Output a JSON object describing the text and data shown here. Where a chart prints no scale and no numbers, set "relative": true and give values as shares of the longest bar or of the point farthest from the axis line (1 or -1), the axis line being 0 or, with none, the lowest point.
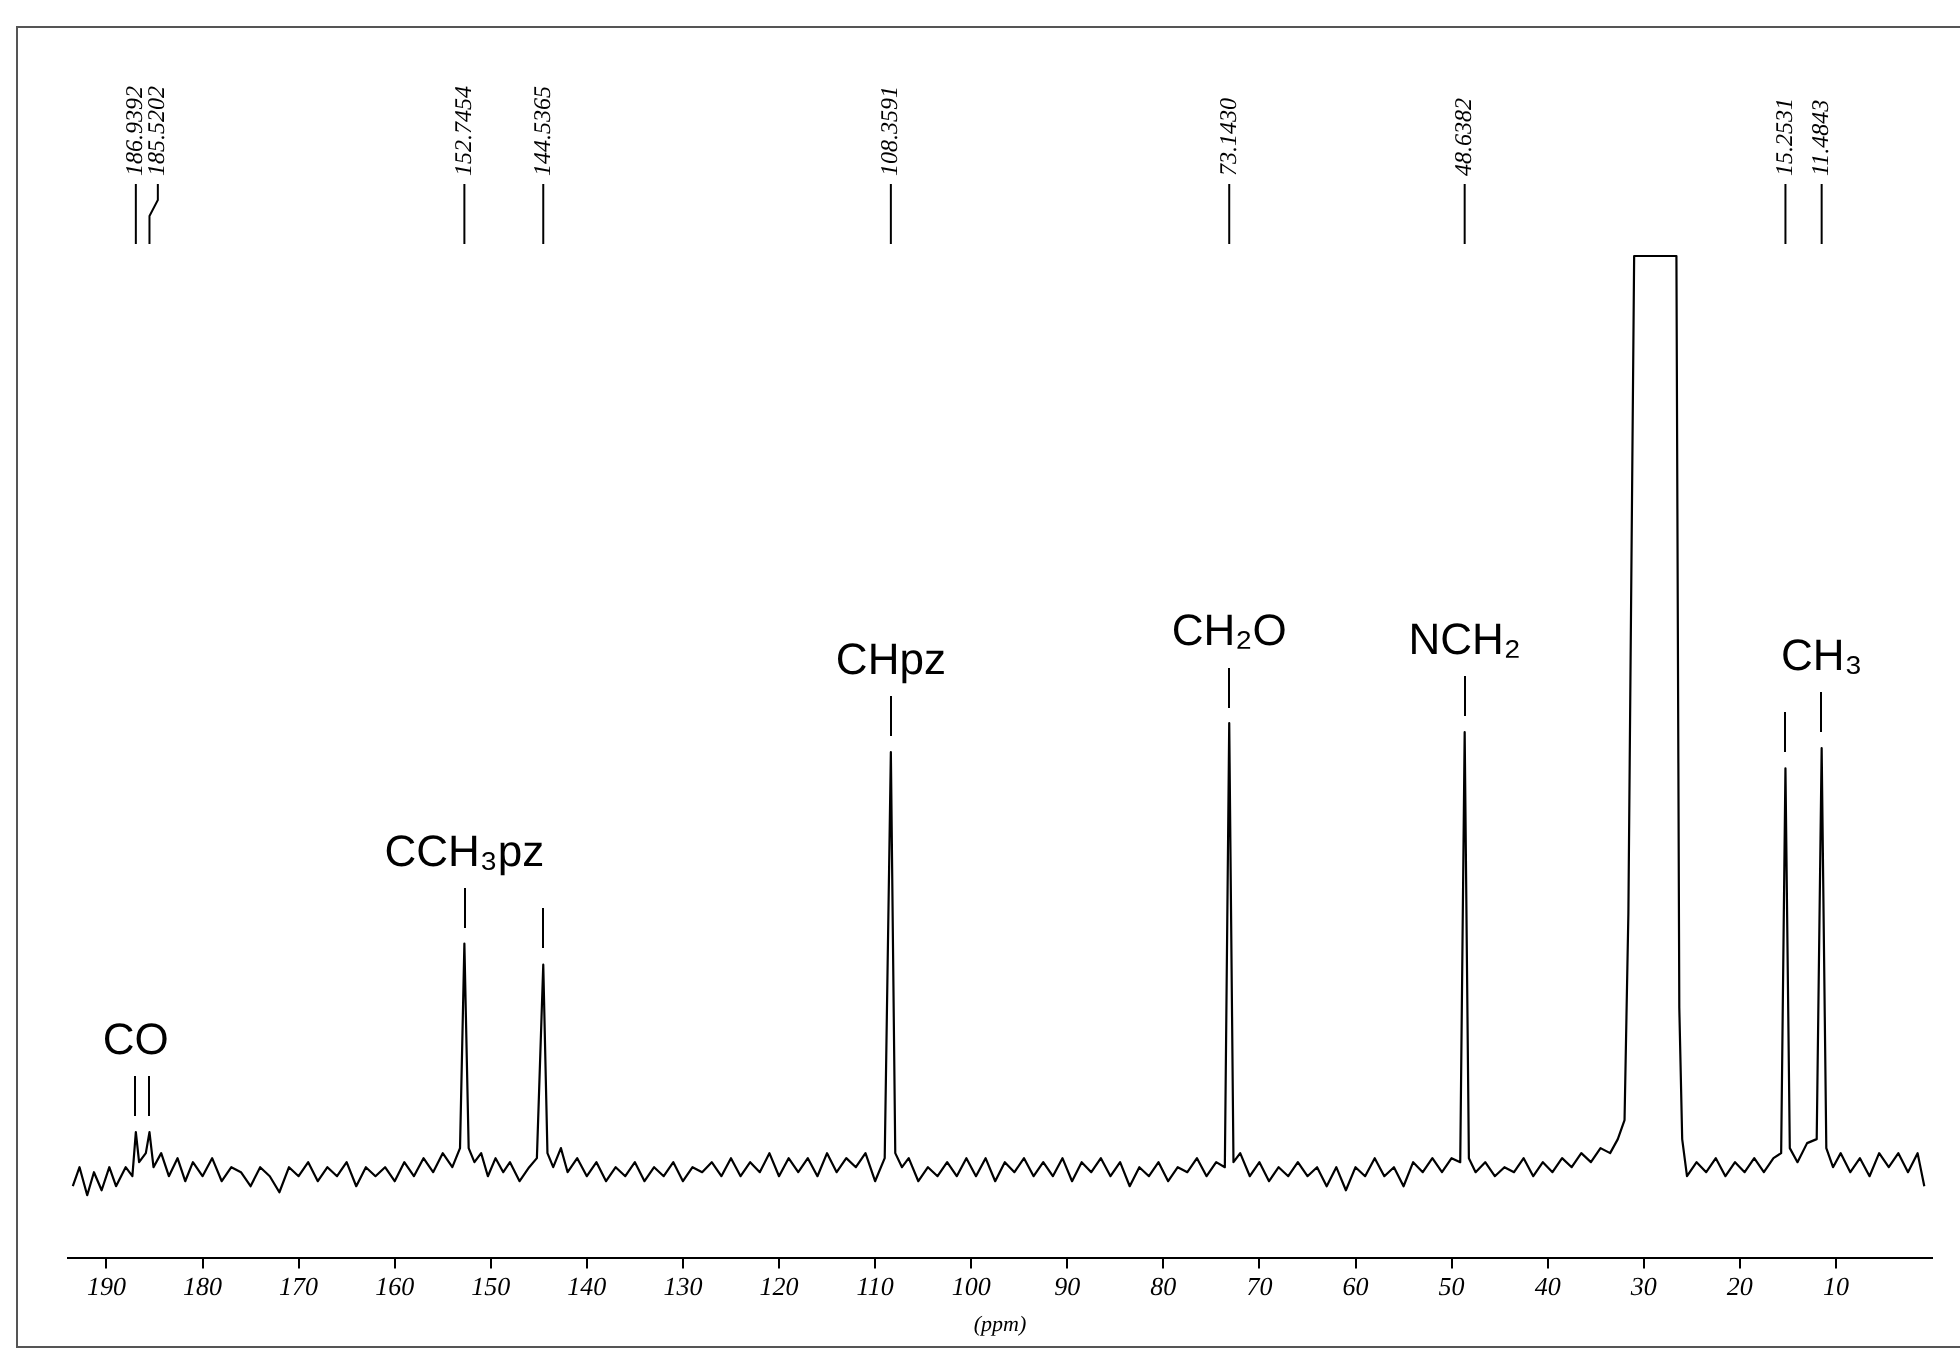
{
  "chart_data": {
    "type": "line",
    "relative": true,
    "xlabel": "(ppm)",
    "xlim": [
      194,
      0
    ],
    "xticks": [
      190,
      180,
      170,
      160,
      150,
      140,
      130,
      120,
      110,
      100,
      90,
      80,
      70,
      60,
      50,
      40,
      30,
      20,
      10
    ],
    "grid": false,
    "legend": false,
    "marker": "none",
    "line_style": "solid",
    "x": [
      193.5,
      192.8,
      192,
      191.3,
      190.5,
      189.7,
      189,
      188,
      187.3,
      186.9392,
      186.6,
      185.9,
      185.5202,
      185.1,
      184.3,
      183.5,
      182.6,
      181.8,
      181,
      180,
      179,
      178,
      177,
      176,
      175,
      174,
      173,
      172,
      171,
      170,
      169,
      168,
      167,
      166,
      165,
      164,
      163,
      162,
      161,
      160,
      159,
      158,
      157,
      156,
      155,
      154,
      153.2,
      152.7454,
      152.3,
      151.7,
      151,
      150.3,
      149.5,
      148.7,
      148,
      147,
      146,
      145.2,
      144.5365,
      144.1,
      143.5,
      142.7,
      142,
      141,
      140,
      139,
      138,
      137,
      136,
      135,
      134,
      133,
      132,
      131,
      130,
      129,
      128,
      127,
      126,
      125,
      124,
      123,
      122,
      121,
      120,
      119,
      118,
      117,
      116,
      115,
      114,
      113,
      112,
      111,
      110,
      109,
      108.3591,
      107.9,
      107.2,
      106.5,
      105.5,
      104.5,
      103.5,
      102.5,
      101.5,
      100.5,
      99.5,
      98.5,
      97.5,
      96.5,
      95.5,
      94.5,
      93.5,
      92.5,
      91.5,
      90.5,
      89.5,
      88.5,
      87.5,
      86.5,
      85.5,
      84.5,
      83.5,
      82.5,
      81.5,
      80.5,
      79.5,
      78.5,
      77.5,
      76.5,
      75.5,
      74.5,
      73.6,
      73.143,
      72.7,
      72,
      71,
      70,
      69,
      68,
      67,
      66,
      65,
      64,
      63,
      62,
      61,
      60,
      59,
      58,
      57,
      56,
      55,
      54,
      53,
      52,
      51,
      50,
      49.1,
      48.6382,
      48.2,
      47.5,
      46.5,
      45.5,
      44.5,
      43.5,
      42.5,
      41.5,
      40.5,
      39.5,
      38.5,
      37.5,
      36.5,
      35.5,
      34.5,
      33.5,
      32.7,
      32,
      31.6,
      31,
      26.6,
      26.3,
      26,
      25.5,
      24.5,
      23.5,
      22.5,
      21.5,
      20.5,
      19.5,
      18.5,
      17.5,
      16.5,
      15.7,
      15.2531,
      14.8,
      14,
      13,
      12,
      11.4843,
      11,
      10.3,
      9.5,
      8.5,
      7.5,
      6.5,
      5.5,
      4.5,
      3.5,
      2.5,
      1.5,
      0.8
    ],
    "series": [
      {
        "color": "#000000",
        "values": [
          0.072,
          0.091,
          0.063,
          0.086,
          0.068,
          0.091,
          0.072,
          0.091,
          0.082,
          0.126,
          0.096,
          0.105,
          0.126,
          0.091,
          0.105,
          0.082,
          0.1,
          0.077,
          0.096,
          0.082,
          0.1,
          0.077,
          0.091,
          0.086,
          0.072,
          0.091,
          0.082,
          0.066,
          0.091,
          0.082,
          0.096,
          0.077,
          0.091,
          0.082,
          0.096,
          0.072,
          0.091,
          0.082,
          0.091,
          0.077,
          0.096,
          0.082,
          0.1,
          0.086,
          0.105,
          0.091,
          0.11,
          0.314,
          0.11,
          0.096,
          0.105,
          0.082,
          0.1,
          0.086,
          0.096,
          0.077,
          0.091,
          0.1,
          0.293,
          0.105,
          0.091,
          0.11,
          0.086,
          0.1,
          0.082,
          0.096,
          0.077,
          0.091,
          0.082,
          0.096,
          0.077,
          0.091,
          0.082,
          0.096,
          0.077,
          0.091,
          0.086,
          0.096,
          0.082,
          0.1,
          0.082,
          0.096,
          0.086,
          0.105,
          0.082,
          0.1,
          0.086,
          0.1,
          0.082,
          0.105,
          0.086,
          0.1,
          0.091,
          0.105,
          0.077,
          0.1,
          0.505,
          0.105,
          0.091,
          0.1,
          0.077,
          0.091,
          0.082,
          0.096,
          0.082,
          0.1,
          0.082,
          0.1,
          0.077,
          0.096,
          0.086,
          0.1,
          0.082,
          0.096,
          0.082,
          0.1,
          0.077,
          0.096,
          0.086,
          0.1,
          0.082,
          0.096,
          0.072,
          0.091,
          0.082,
          0.096,
          0.077,
          0.091,
          0.086,
          0.1,
          0.082,
          0.096,
          0.091,
          0.534,
          0.096,
          0.105,
          0.082,
          0.096,
          0.077,
          0.091,
          0.082,
          0.096,
          0.082,
          0.091,
          0.072,
          0.091,
          0.068,
          0.091,
          0.082,
          0.1,
          0.082,
          0.091,
          0.072,
          0.096,
          0.086,
          0.1,
          0.086,
          0.1,
          0.096,
          0.525,
          0.1,
          0.086,
          0.096,
          0.082,
          0.091,
          0.086,
          0.1,
          0.082,
          0.096,
          0.086,
          0.1,
          0.091,
          0.105,
          0.096,
          0.11,
          0.105,
          0.119,
          0.138,
          0.344,
          1,
          1,
          0.25,
          0.119,
          0.082,
          0.096,
          0.086,
          0.1,
          0.082,
          0.096,
          0.086,
          0.1,
          0.086,
          0.1,
          0.105,
          0.489,
          0.11,
          0.096,
          0.115,
          0.119,
          0.509,
          0.11,
          0.091,
          0.105,
          0.086,
          0.1,
          0.082,
          0.105,
          0.091,
          0.105,
          0.086,
          0.105,
          0.072
        ]
      }
    ],
    "annotations": [
      {
        "text": "186.9392",
        "x": 186.9392
      },
      {
        "text": "185.5202",
        "x": 185.5202
      },
      {
        "text": "152.7454",
        "x": 152.7454
      },
      {
        "text": "144.5365",
        "x": 144.5365
      },
      {
        "text": "108.3591",
        "x": 108.3591
      },
      {
        "text": "73.1430",
        "x": 73.143
      },
      {
        "text": "48.6382",
        "x": 48.6382
      },
      {
        "text": "15.2531",
        "x": 15.2531
      },
      {
        "text": "11.4843",
        "x": 11.4843
      },
      {
        "text": "CO",
        "x": 186.9392,
        "y": 0.126
      },
      {
        "text": "CCH₃pz",
        "x": 152.7454,
        "y": 0.314
      },
      {
        "text": "CHpz",
        "x": 108.3591,
        "y": 0.505
      },
      {
        "text": "CH₂O",
        "x": 73.143,
        "y": 0.534
      },
      {
        "text": "NCH₂",
        "x": 48.6382,
        "y": 0.525
      },
      {
        "text": "CH₃",
        "x": 11.4843,
        "y": 0.509
      }
    ]
  }
}
